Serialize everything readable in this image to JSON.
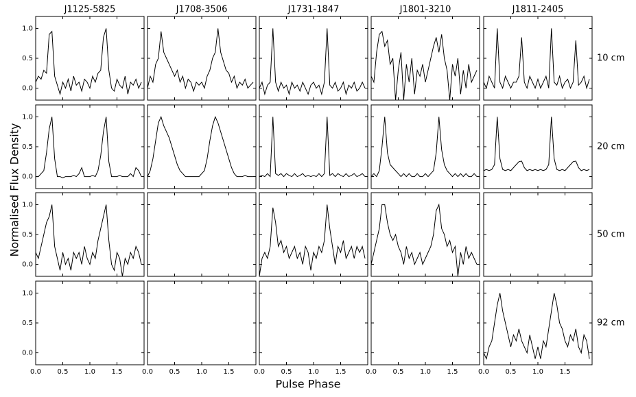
{
  "chart_data": {
    "type": "line",
    "xlabel": "Pulse Phase",
    "ylabel": "Normalised Flux Density",
    "color": "#000000",
    "columns": [
      "J1125-5825",
      "J1708-3506",
      "J1731-1847",
      "J1801-3210",
      "J1811-2405"
    ],
    "xlim": [
      0,
      2
    ],
    "ylim": [
      -0.2,
      1.2
    ],
    "xticks": [
      {
        "value": 0,
        "label": "0.0"
      },
      {
        "value": 0.5,
        "label": "0.5"
      },
      {
        "value": 1,
        "label": "1.0"
      },
      {
        "value": 1.5,
        "label": "1.5"
      }
    ],
    "yticks": [
      {
        "value": 0,
        "label": "0.0"
      },
      {
        "value": 0.5,
        "label": "0.5"
      },
      {
        "value": 1,
        "label": "1.0"
      }
    ],
    "x": [
      0,
      0.05,
      0.1,
      0.15,
      0.2,
      0.25,
      0.3,
      0.35,
      0.4,
      0.45,
      0.5,
      0.55,
      0.6,
      0.65,
      0.7,
      0.75,
      0.8,
      0.85,
      0.9,
      0.95,
      1,
      1.05,
      1.1,
      1.15,
      1.2,
      1.25,
      1.3,
      1.35,
      1.4,
      1.45,
      1.5,
      1.55,
      1.6,
      1.65,
      1.7,
      1.75,
      1.8,
      1.85,
      1.9,
      1.95
    ],
    "rows": [
      {
        "label": "10 cm",
        "profiles": [
          [
            0.1,
            0.2,
            0.15,
            0.3,
            0.25,
            0.9,
            0.95,
            0.2,
            0.05,
            -0.1,
            0.1,
            0.0,
            0.15,
            -0.05,
            0.2,
            0.05,
            0.1,
            -0.05,
            0.15,
            0.1,
            0.0,
            0.2,
            0.1,
            0.25,
            0.3,
            0.85,
            1.0,
            0.3,
            0.0,
            -0.05,
            0.15,
            0.05,
            0.0,
            0.2,
            -0.1,
            0.1,
            0.05,
            0.15,
            0.0,
            0.1
          ],
          [
            0.0,
            0.2,
            0.1,
            0.4,
            0.5,
            0.95,
            0.6,
            0.5,
            0.4,
            0.3,
            0.2,
            0.3,
            0.1,
            0.2,
            0.0,
            0.15,
            0.1,
            -0.05,
            0.1,
            0.05,
            0.1,
            0.0,
            0.2,
            0.3,
            0.5,
            0.6,
            1.0,
            0.6,
            0.45,
            0.3,
            0.25,
            0.1,
            0.2,
            0.0,
            0.1,
            0.05,
            0.15,
            0.0,
            0.05,
            0.1
          ],
          [
            0.0,
            0.1,
            -0.1,
            0.05,
            0.1,
            1.0,
            0.1,
            -0.05,
            0.1,
            0.0,
            0.05,
            -0.1,
            0.1,
            0.0,
            0.05,
            -0.05,
            0.1,
            0.0,
            -0.1,
            0.05,
            0.1,
            0.0,
            0.05,
            -0.1,
            0.1,
            1.0,
            0.05,
            0.0,
            0.1,
            -0.05,
            0.0,
            0.1,
            -0.1,
            0.05,
            0.0,
            0.1,
            -0.05,
            0.0,
            0.1,
            0.0
          ],
          [
            0.2,
            0.1,
            0.6,
            0.9,
            0.95,
            0.7,
            0.8,
            0.4,
            0.5,
            -0.2,
            0.3,
            0.6,
            -0.2,
            0.4,
            0.1,
            0.5,
            -0.1,
            0.3,
            0.2,
            0.4,
            0.1,
            0.3,
            0.5,
            0.7,
            0.85,
            0.6,
            0.9,
            0.5,
            0.3,
            -0.2,
            0.4,
            0.2,
            0.5,
            -0.1,
            0.3,
            0.0,
            0.4,
            0.1,
            0.2,
            0.3
          ],
          [
            0.1,
            0.0,
            0.2,
            0.1,
            0.0,
            1.0,
            0.1,
            0.0,
            0.2,
            0.1,
            0.0,
            0.1,
            0.1,
            0.2,
            0.85,
            0.1,
            0.0,
            0.2,
            0.1,
            0.0,
            0.15,
            0.0,
            0.1,
            0.2,
            0.0,
            1.0,
            0.1,
            0.05,
            0.2,
            0.0,
            0.1,
            0.15,
            0.0,
            0.1,
            0.8,
            0.05,
            0.1,
            0.2,
            0.0,
            0.15
          ]
        ]
      },
      {
        "label": "20 cm",
        "profiles": [
          [
            0.0,
            0.0,
            0.05,
            0.1,
            0.4,
            0.8,
            1.0,
            0.3,
            0.0,
            0.0,
            -0.02,
            0.0,
            0.0,
            0.0,
            0.02,
            0.0,
            0.05,
            0.15,
            0.0,
            0.0,
            0.0,
            0.02,
            0.0,
            0.1,
            0.35,
            0.75,
            1.0,
            0.25,
            0.0,
            0.0,
            0.0,
            0.02,
            0.0,
            0.0,
            0.0,
            0.05,
            0.0,
            0.15,
            0.1,
            0.0
          ],
          [
            0.0,
            0.1,
            0.3,
            0.6,
            0.9,
            1.0,
            0.85,
            0.75,
            0.65,
            0.5,
            0.35,
            0.2,
            0.1,
            0.05,
            0.0,
            0.0,
            0.0,
            0.0,
            0.0,
            0.0,
            0.05,
            0.1,
            0.3,
            0.6,
            0.85,
            1.0,
            0.9,
            0.75,
            0.6,
            0.45,
            0.3,
            0.15,
            0.05,
            0.0,
            0.0,
            0.0,
            0.02,
            0.0,
            0.0,
            0.0
          ],
          [
            0.0,
            0.02,
            0.0,
            0.05,
            0.0,
            1.0,
            0.05,
            0.02,
            0.05,
            0.0,
            0.05,
            0.02,
            0.0,
            0.05,
            0.0,
            0.02,
            0.05,
            0.0,
            0.02,
            0.0,
            0.02,
            0.0,
            0.05,
            0.0,
            0.05,
            1.0,
            0.02,
            0.05,
            0.0,
            0.05,
            0.02,
            0.0,
            0.05,
            0.0,
            0.02,
            0.05,
            0.0,
            0.02,
            0.05,
            0.0
          ],
          [
            0.0,
            0.05,
            0.0,
            0.1,
            0.5,
            1.0,
            0.4,
            0.2,
            0.15,
            0.1,
            0.05,
            0.0,
            0.05,
            0.0,
            0.05,
            0.0,
            0.0,
            0.05,
            0.0,
            0.0,
            0.05,
            0.0,
            0.05,
            0.1,
            0.4,
            1.0,
            0.45,
            0.2,
            0.1,
            0.05,
            0.0,
            0.05,
            0.0,
            0.05,
            0.0,
            0.05,
            0.0,
            0.0,
            0.05,
            0.0
          ],
          [
            0.1,
            0.12,
            0.1,
            0.12,
            0.2,
            1.0,
            0.3,
            0.12,
            0.1,
            0.12,
            0.1,
            0.15,
            0.2,
            0.25,
            0.26,
            0.15,
            0.1,
            0.12,
            0.1,
            0.12,
            0.1,
            0.12,
            0.1,
            0.12,
            0.2,
            1.0,
            0.3,
            0.12,
            0.1,
            0.12,
            0.1,
            0.15,
            0.2,
            0.25,
            0.26,
            0.15,
            0.1,
            0.12,
            0.1,
            0.12
          ]
        ]
      },
      {
        "label": "50 cm",
        "profiles": [
          [
            0.2,
            0.1,
            0.3,
            0.5,
            0.7,
            0.8,
            1.0,
            0.3,
            0.1,
            -0.1,
            0.2,
            0.0,
            0.1,
            -0.1,
            0.2,
            0.1,
            0.2,
            0.0,
            0.3,
            0.1,
            0.0,
            0.2,
            0.1,
            0.4,
            0.6,
            0.8,
            1.0,
            0.4,
            0.0,
            -0.1,
            0.2,
            0.1,
            -0.2,
            0.1,
            0.0,
            0.2,
            0.1,
            0.3,
            0.2,
            0.0
          ],
          null,
          [
            -0.2,
            0.1,
            0.2,
            0.1,
            0.3,
            0.95,
            0.7,
            0.3,
            0.4,
            0.2,
            0.3,
            0.1,
            0.2,
            0.3,
            0.1,
            0.2,
            0.0,
            0.3,
            0.2,
            -0.1,
            0.2,
            0.1,
            0.3,
            0.2,
            0.4,
            1.0,
            0.6,
            0.3,
            0.0,
            0.3,
            0.2,
            0.4,
            0.1,
            0.2,
            0.3,
            0.1,
            0.3,
            0.2,
            0.3,
            0.1
          ],
          [
            0.0,
            0.2,
            0.4,
            0.6,
            1.0,
            1.0,
            0.7,
            0.5,
            0.4,
            0.5,
            0.3,
            0.2,
            0.0,
            0.3,
            0.1,
            0.2,
            0.0,
            0.1,
            0.2,
            0.0,
            0.1,
            0.2,
            0.3,
            0.5,
            0.9,
            1.0,
            0.6,
            0.5,
            0.3,
            0.4,
            0.2,
            0.3,
            -0.2,
            0.2,
            0.0,
            0.3,
            0.1,
            0.2,
            0.1,
            0.0
          ],
          null
        ]
      },
      {
        "label": "92 cm",
        "profiles": [
          null,
          null,
          null,
          null,
          [
            0.0,
            -0.1,
            0.1,
            0.2,
            0.5,
            0.8,
            1.0,
            0.7,
            0.5,
            0.3,
            0.1,
            0.3,
            0.2,
            0.4,
            0.2,
            0.1,
            0.0,
            0.3,
            0.1,
            -0.1,
            0.1,
            -0.1,
            0.2,
            0.1,
            0.4,
            0.7,
            1.0,
            0.8,
            0.5,
            0.4,
            0.2,
            0.1,
            0.3,
            0.2,
            0.4,
            0.1,
            0.0,
            0.3,
            0.2,
            -0.1
          ]
        ]
      }
    ]
  }
}
